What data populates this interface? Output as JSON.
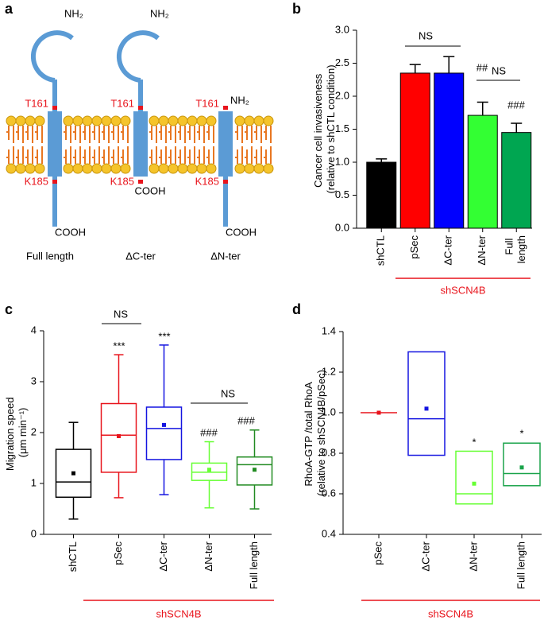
{
  "panel_labels": [
    "a",
    "b",
    "c",
    "d"
  ],
  "diagram": {
    "constructs": [
      {
        "name": "Full length",
        "nh2": "NH₂",
        "cooh": "COOH",
        "t161": "T161",
        "k185": "K185"
      },
      {
        "name": "ΔC-ter",
        "nh2": "NH₂",
        "cooh": "COOH",
        "t161": "T161",
        "k185": "K185"
      },
      {
        "name": "ΔN-ter",
        "nh2": "NH₂",
        "cooh": "COOH",
        "t161": "T161",
        "k185": "K185"
      }
    ]
  },
  "chart_data": [
    {
      "type": "bar",
      "y_label": "Cancer cell invasiveness (relative to shCTL condition)",
      "categories": [
        "shCTL",
        "pSec",
        "ΔC-ter",
        "ΔN-ter",
        "Full length"
      ],
      "values": [
        1.0,
        2.35,
        2.35,
        1.71,
        1.45
      ],
      "errors": [
        0.05,
        0.13,
        0.25,
        0.2,
        0.14
      ],
      "colors": [
        "#000000",
        "#ff0000",
        "#0000ff",
        "#33ff33",
        "#00a651"
      ],
      "ylim": [
        0,
        3
      ],
      "yticks": [
        {
          "value": 0,
          "label": "0.0"
        },
        0.5,
        {
          "value": 1,
          "label": "1.0"
        },
        1.5,
        {
          "value": 2,
          "label": "2.0"
        },
        2.5,
        {
          "value": 3,
          "label": "3.0"
        }
      ],
      "annotations": [
        {
          "text": "NS"
        },
        {
          "text": "NS"
        },
        {
          "text": "##"
        },
        {
          "text": "###"
        }
      ],
      "group_label": "shSCN4B"
    },
    {
      "type": "box",
      "y_label": "Migration speed (μm min⁻¹)",
      "categories": [
        "shCTL",
        "pSec",
        "ΔC-ter",
        "ΔN-ter",
        "Full length"
      ],
      "boxes": [
        {
          "low": 0.3,
          "q1": 0.73,
          "median": 1.03,
          "q3": 1.67,
          "high": 2.2,
          "mean": 1.2
        },
        {
          "low": 0.72,
          "q1": 1.22,
          "median": 1.95,
          "q3": 2.57,
          "high": 3.53,
          "mean": 1.93
        },
        {
          "low": 0.78,
          "q1": 1.47,
          "median": 2.08,
          "q3": 2.5,
          "high": 3.72,
          "mean": 2.15
        },
        {
          "low": 0.52,
          "q1": 1.06,
          "median": 1.22,
          "q3": 1.4,
          "high": 1.82,
          "mean": 1.27
        },
        {
          "low": 0.5,
          "q1": 0.97,
          "median": 1.37,
          "q3": 1.52,
          "high": 2.05,
          "mean": 1.27
        }
      ],
      "colors": [
        "#000000",
        "#e8141c",
        "#1515e0",
        "#66ff33",
        "#228b22"
      ],
      "ylim": [
        0,
        4
      ],
      "yticks": [
        0,
        1,
        2,
        3,
        4
      ],
      "annotations": [
        {
          "text": "NS"
        },
        {
          "text": "NS"
        },
        {
          "text": "***"
        },
        {
          "text": "***"
        },
        {
          "text": "###"
        },
        {
          "text": "###"
        }
      ],
      "group_label": "shSCN4B"
    },
    {
      "type": "box",
      "y_label": "RhoA-GTP /total RhoA (relative to shSCN4B/pSec)",
      "categories": [
        "pSec",
        "ΔC-ter",
        "ΔN-ter",
        "Full length"
      ],
      "boxes": [
        {
          "q1": 1.0,
          "median": 1.0,
          "q3": 1.0,
          "mean": 1.0
        },
        {
          "q1": 0.79,
          "median": 0.97,
          "q3": 1.3,
          "mean": 1.02
        },
        {
          "q1": 0.55,
          "median": 0.6,
          "q3": 0.81,
          "mean": 0.65
        },
        {
          "q1": 0.64,
          "median": 0.7,
          "q3": 0.85,
          "mean": 0.73
        }
      ],
      "colors": [
        "#e8141c",
        "#1515e0",
        "#66ff33",
        "#1aa34a"
      ],
      "ylim": [
        0.4,
        1.4
      ],
      "yticks": [
        0.4,
        0.6,
        0.8,
        {
          "value": 1,
          "label": "1.0"
        },
        1.2,
        1.4
      ],
      "annotations": [
        {
          "text": "*"
        },
        {
          "text": "*"
        }
      ],
      "group_label": "shSCN4B"
    }
  ]
}
